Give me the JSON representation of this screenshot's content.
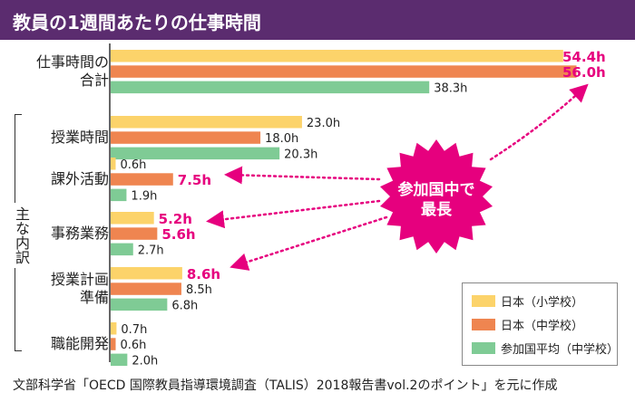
{
  "title": "教員の1週間あたりの仕事時間",
  "callout": {
    "line1": "参加国中で",
    "line2": "最長"
  },
  "bracket_label": "主な内訳",
  "source": "文部科学省「OECD 国際教員指導環境調査（TALIS）2018報告書vol.2のポイント」を元に作成",
  "colors": {
    "header": "#5b2c6f",
    "highlight": "#e6007e",
    "elementary": "#fcd36a",
    "junior": "#ef8550",
    "average": "#7fcb95"
  },
  "chart_data": {
    "type": "bar",
    "orientation": "horizontal",
    "unit": "h",
    "categories": [
      "仕事時間の合計",
      "授業時間",
      "課外活動",
      "事務業務",
      "授業計画準備",
      "職能開発"
    ],
    "category_lines": [
      [
        "仕事時間の",
        "合計"
      ],
      [
        "授業時間"
      ],
      [
        "課外活動"
      ],
      [
        "事務業務"
      ],
      [
        "授業計画",
        "準備"
      ],
      [
        "職能開発"
      ]
    ],
    "series": [
      {
        "name": "日本（小学校）",
        "values": [
          54.4,
          23.0,
          0.6,
          5.2,
          8.6,
          0.7
        ],
        "labels": [
          "54.4h",
          "23.0h",
          "0.6h",
          "5.2h",
          "8.6h",
          "0.7h"
        ],
        "highlight": [
          true,
          false,
          false,
          true,
          true,
          false
        ]
      },
      {
        "name": "日本（中学校）",
        "values": [
          56.0,
          18.0,
          7.5,
          5.6,
          8.5,
          0.6
        ],
        "labels": [
          "56.0h",
          "18.0h",
          "7.5h",
          "5.6h",
          "8.5h",
          "0.6h"
        ],
        "highlight": [
          true,
          false,
          true,
          true,
          false,
          false
        ]
      },
      {
        "name": "参加国平均（中学校）",
        "values": [
          38.3,
          20.3,
          1.9,
          2.7,
          6.8,
          2.0
        ],
        "labels": [
          "38.3h",
          "20.3h",
          "1.9h",
          "2.7h",
          "6.8h",
          "2.0h"
        ],
        "highlight": [
          false,
          false,
          false,
          false,
          false,
          false
        ]
      }
    ],
    "xlim": [
      0,
      56
    ],
    "grid": false,
    "legend_position": "bottom-right"
  }
}
